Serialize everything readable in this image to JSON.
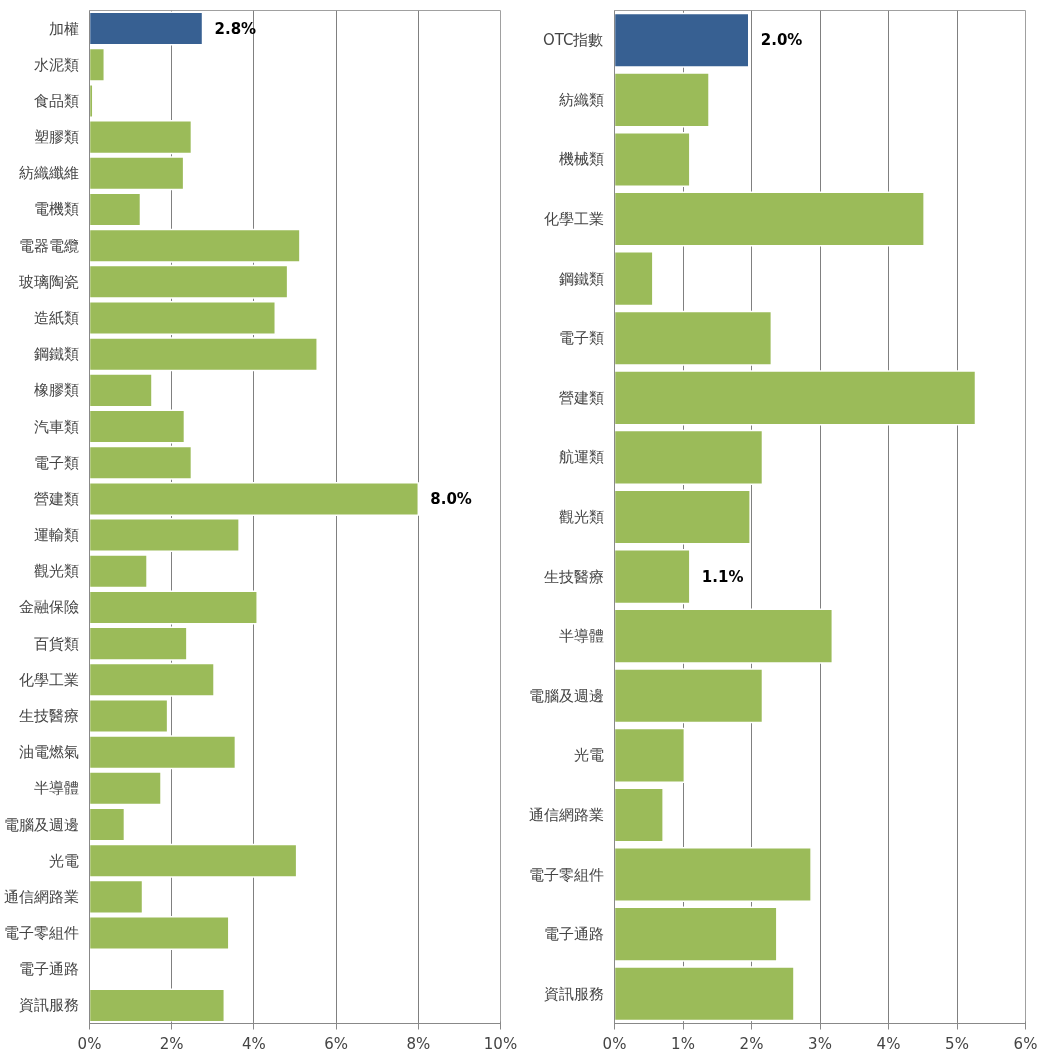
{
  "chart_data": [
    {
      "type": "bar",
      "orientation": "horizontal",
      "categories": [
        "加權",
        "水泥類",
        "食品類",
        "塑膠類",
        "紡織纖維",
        "電機類",
        "電器電纜",
        "玻璃陶瓷",
        "造紙類",
        "鋼鐵類",
        "橡膠類",
        "汽車類",
        "電子類",
        "營建類",
        "運輸類",
        "觀光類",
        "金融保險",
        "百貨類",
        "化學工業",
        "生技醫療",
        "油電燃氣",
        "半導體",
        "電腦及週邊",
        "光電",
        "通信網路業",
        "電子零組件",
        "電子通路",
        "資訊服務"
      ],
      "values": [
        2.75,
        0.36,
        0.08,
        2.48,
        2.29,
        1.24,
        5.12,
        4.82,
        4.52,
        5.54,
        1.52,
        2.31,
        2.48,
        8.0,
        3.64,
        1.4,
        4.08,
        2.37,
        3.03,
        1.9,
        3.55,
        1.74,
        0.85,
        5.04,
        1.29,
        3.39,
        null,
        3.28
      ],
      "colors": [
        "#376092",
        "#9bbb59",
        "#9bbb59",
        "#9bbb59",
        "#9bbb59",
        "#9bbb59",
        "#9bbb59",
        "#9bbb59",
        "#9bbb59",
        "#9bbb59",
        "#9bbb59",
        "#9bbb59",
        "#9bbb59",
        "#9bbb59",
        "#9bbb59",
        "#9bbb59",
        "#9bbb59",
        "#9bbb59",
        "#9bbb59",
        "#9bbb59",
        "#9bbb59",
        "#9bbb59",
        "#9bbb59",
        "#9bbb59",
        "#9bbb59",
        "#9bbb59",
        "#9bbb59",
        "#9bbb59"
      ],
      "value_labels": [
        "2.8%",
        null,
        null,
        null,
        null,
        null,
        null,
        null,
        null,
        null,
        null,
        null,
        null,
        "8.0%",
        null,
        null,
        null,
        null,
        null,
        null,
        null,
        null,
        null,
        null,
        null,
        null,
        null,
        null
      ],
      "xlim": [
        0,
        10
      ],
      "xticks": [
        {
          "value": 0,
          "label": "0%"
        },
        {
          "value": 2,
          "label": "2%"
        },
        {
          "value": 4,
          "label": "4%"
        },
        {
          "value": 6,
          "label": "6%"
        },
        {
          "value": 8,
          "label": "8%"
        },
        {
          "value": 10,
          "label": "10%"
        }
      ],
      "grid": "x"
    },
    {
      "type": "bar",
      "orientation": "horizontal",
      "categories": [
        "OTC指數",
        "紡織類",
        "機械類",
        "化學工業",
        "鋼鐵類",
        "電子類",
        "營建類",
        "航運類",
        "觀光類",
        "生技醫療",
        "半導體",
        "電腦及週邊",
        "光電",
        "通信網路業",
        "電子零組件",
        "電子通路",
        "資訊服務"
      ],
      "values": [
        1.96,
        1.38,
        1.1,
        4.52,
        0.56,
        2.29,
        5.27,
        2.16,
        1.98,
        1.1,
        3.18,
        2.16,
        1.02,
        0.71,
        2.87,
        2.37,
        2.62
      ],
      "colors": [
        "#376092",
        "#9bbb59",
        "#9bbb59",
        "#9bbb59",
        "#9bbb59",
        "#9bbb59",
        "#9bbb59",
        "#9bbb59",
        "#9bbb59",
        "#9bbb59",
        "#9bbb59",
        "#9bbb59",
        "#9bbb59",
        "#9bbb59",
        "#9bbb59",
        "#9bbb59",
        "#9bbb59"
      ],
      "value_labels": [
        "2.0%",
        null,
        null,
        null,
        null,
        null,
        null,
        null,
        null,
        "1.1%",
        null,
        null,
        null,
        null,
        null,
        null,
        null
      ],
      "xlim": [
        0,
        6
      ],
      "xticks": [
        {
          "value": 0,
          "label": "0%"
        },
        {
          "value": 1,
          "label": "1%"
        },
        {
          "value": 2,
          "label": "2%"
        },
        {
          "value": 3,
          "label": "3%"
        },
        {
          "value": 4,
          "label": "4%"
        },
        {
          "value": 5,
          "label": "5%"
        },
        {
          "value": 6,
          "label": "6%"
        }
      ],
      "grid": "x"
    }
  ]
}
